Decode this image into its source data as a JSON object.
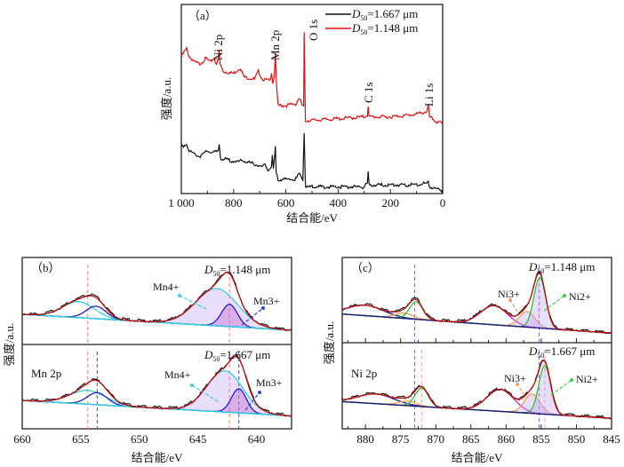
{
  "chart_data": [
    {
      "id": "a",
      "type": "line",
      "panel_label": "（a）",
      "xlabel": "结合能/eV",
      "ylabel": "强度/a.u.",
      "xlim": [
        1000,
        0
      ],
      "ylim": [
        0,
        100
      ],
      "xticks": [
        "1 000",
        "800",
        "600",
        "400",
        "200",
        "0"
      ],
      "xtick_values": [
        1000,
        800,
        600,
        400,
        200,
        0
      ],
      "legend": {
        "placement": "top-right",
        "entries": [
          {
            "pre": "D",
            "sub": "50",
            "post": "=1.667 μm",
            "color": "#111111"
          },
          {
            "pre": "D",
            "sub": "50",
            "post": "=1.148 μm",
            "color": "#e01010"
          }
        ]
      },
      "peak_labels": [
        "Ni 2p",
        "Mn 2p",
        "O 1s",
        "C 1s",
        "Li 1s"
      ],
      "series": [
        {
          "name": "D50=1.148 μm",
          "color": "#e01010",
          "points": [
            [
              1000,
              73
            ],
            [
              990,
              75
            ],
            [
              980,
              77
            ],
            [
              970,
              73
            ],
            [
              950,
              70
            ],
            [
              930,
              69
            ],
            [
              905,
              72
            ],
            [
              890,
              70
            ],
            [
              875,
              72
            ],
            [
              865,
              69
            ],
            [
              858,
              71
            ],
            [
              855,
              76
            ],
            [
              852,
              69
            ],
            [
              840,
              65
            ],
            [
              800,
              64
            ],
            [
              775,
              67
            ],
            [
              760,
              62
            ],
            [
              720,
              61
            ],
            [
              705,
              65
            ],
            [
              690,
              61
            ],
            [
              660,
              60
            ],
            [
              655,
              65
            ],
            [
              650,
              59
            ],
            [
              645,
              62
            ],
            [
              640,
              74
            ],
            [
              636,
              58
            ],
            [
              630,
              47
            ],
            [
              600,
              47
            ],
            [
              560,
              48
            ],
            [
              550,
              51
            ],
            [
              540,
              48
            ],
            [
              532,
              46
            ],
            [
              530,
              85
            ],
            [
              527,
              55
            ],
            [
              525,
              39
            ],
            [
              400,
              40
            ],
            [
              300,
              41
            ],
            [
              288,
              42
            ],
            [
              285,
              47
            ],
            [
              282,
              41
            ],
            [
              200,
              41
            ],
            [
              120,
              42
            ],
            [
              80,
              43
            ],
            [
              60,
              44
            ],
            [
              55,
              47
            ],
            [
              50,
              41
            ],
            [
              30,
              39
            ],
            [
              20,
              38
            ],
            [
              10,
              38
            ],
            [
              0,
              37
            ]
          ]
        },
        {
          "name": "D50=1.667 μm",
          "color": "#111111",
          "points": [
            [
              1000,
              25
            ],
            [
              980,
              27
            ],
            [
              970,
              23
            ],
            [
              930,
              20
            ],
            [
              900,
              23
            ],
            [
              880,
              22
            ],
            [
              858,
              23
            ],
            [
              855,
              27
            ],
            [
              850,
              19
            ],
            [
              780,
              17
            ],
            [
              770,
              18
            ],
            [
              720,
              16
            ],
            [
              700,
              15
            ],
            [
              690,
              14
            ],
            [
              680,
              16
            ],
            [
              670,
              13
            ],
            [
              655,
              14
            ],
            [
              652,
              20
            ],
            [
              648,
              13
            ],
            [
              640,
              25
            ],
            [
              637,
              11
            ],
            [
              630,
              8
            ],
            [
              560,
              8
            ],
            [
              550,
              11
            ],
            [
              535,
              8
            ],
            [
              530,
              33
            ],
            [
              526,
              8
            ],
            [
              524,
              4
            ],
            [
              300,
              4
            ],
            [
              288,
              6
            ],
            [
              285,
              12
            ],
            [
              282,
              5
            ],
            [
              100,
              5
            ],
            [
              60,
              6
            ],
            [
              55,
              7
            ],
            [
              50,
              4
            ],
            [
              0,
              2
            ]
          ]
        }
      ]
    },
    {
      "id": "b",
      "type": "line",
      "panel_label": "（b）",
      "core_label": "Mn 2p",
      "xlabel": "结合能/eV",
      "ylabel": "强度/a.u.",
      "xlim": [
        660,
        637
      ],
      "ylim": [
        0,
        98
      ],
      "xticks": [
        "660",
        "655",
        "650",
        "645",
        "640"
      ],
      "xtick_values": [
        660,
        655,
        650,
        645,
        640
      ],
      "subpanels": [
        {
          "label": {
            "pre": "D",
            "sub": "50",
            "post": "=1.148 μm"
          },
          "baseline": [
            34,
            16
          ],
          "components": [
            {
              "name": "Mn4+",
              "center": 643.4,
              "fwhm": 4.2,
              "height": 42,
              "color": "#30d0e0",
              "fill": true
            },
            {
              "name": "Mn3+",
              "center": 642.3,
              "fwhm": 1.6,
              "height": 25,
              "color": "#2020c0",
              "fill": true
            },
            {
              "center": 655.2,
              "fwhm": 3.2,
              "height": 18,
              "color": "#30d0e0"
            },
            {
              "center": 653.7,
              "fwhm": 2.0,
              "height": 14,
              "color": "#2020c0"
            }
          ],
          "annotations": [
            "Mn4+",
            "Mn3+"
          ],
          "dashed": [
            {
              "x": 654.4,
              "color": "#f08080"
            },
            {
              "x": 642.3,
              "color": "#f08080"
            }
          ]
        },
        {
          "label": {
            "pre": "D",
            "sub": "50",
            "post": "=1.667 μm"
          },
          "baseline": [
            33,
            15
          ],
          "components": [
            {
              "name": "Mn4+",
              "center": 642.7,
              "fwhm": 3.6,
              "height": 48,
              "color": "#30d0e0",
              "fill": true
            },
            {
              "name": "Mn3+",
              "center": 641.5,
              "fwhm": 1.5,
              "height": 28,
              "color": "#2020c0",
              "fill": true
            },
            {
              "center": 654.4,
              "fwhm": 3.6,
              "height": 16,
              "color": "#30d0e0"
            },
            {
              "center": 653.6,
              "fwhm": 2.0,
              "height": 14,
              "color": "#2020c0"
            }
          ],
          "annotations": [
            "Mn4+",
            "Mn3+"
          ],
          "dashed": [
            {
              "x": 654.4,
              "color": "#f08080"
            },
            {
              "x": 642.3,
              "color": "#f08080"
            },
            {
              "x": 653.6,
              "color": "#5040b0"
            },
            {
              "x": 641.5,
              "color": "#5040b0"
            }
          ]
        }
      ]
    },
    {
      "id": "c",
      "type": "line",
      "panel_label": "（c）",
      "core_label": "Ni 2p",
      "xlabel": "结合能/eV",
      "ylabel": "强度/a.u.",
      "xlim": [
        883.3,
        845
      ],
      "ylim": [
        0,
        98
      ],
      "xticks": [
        "880",
        "875",
        "870",
        "865",
        "860",
        "855",
        "850",
        "845"
      ],
      "xtick_values": [
        880,
        875,
        870,
        865,
        860,
        855,
        850,
        845
      ],
      "subpanels": [
        {
          "label": {
            "pre": "D",
            "sub": "50",
            "post": "=1.148 μm"
          },
          "baseline": [
            33,
            11
          ],
          "components": [
            {
              "center": 880,
              "fwhm": 6,
              "height": 12,
              "color": "#1a1a80"
            },
            {
              "center": 874.5,
              "fwhm": 3,
              "height": 6,
              "color": "#f0a060"
            },
            {
              "center": 872.8,
              "fwhm": 2.2,
              "height": 20,
              "color": "#30c030"
            },
            {
              "center": 861.7,
              "fwhm": 4.5,
              "height": 22,
              "color": "#d020d0"
            },
            {
              "name": "Ni3+",
              "center": 857,
              "fwhm": 2.6,
              "height": 18,
              "color": "#f0a060",
              "fill": true
            },
            {
              "name": "Ni2+",
              "center": 855.2,
              "fwhm": 2.0,
              "height": 58,
              "color": "#30c030",
              "fill": true
            }
          ],
          "annotations": [
            "Ni3+",
            "Ni2+"
          ],
          "dashed": [
            {
              "x": 873,
              "color": "#7070e0"
            },
            {
              "x": 855.3,
              "color": "#7070e0"
            }
          ]
        },
        {
          "label": {
            "pre": "D",
            "sub": "50",
            "post": "=1.667 μm"
          },
          "baseline": [
            31,
            12
          ],
          "components": [
            {
              "center": 878.5,
              "fwhm": 6,
              "height": 11,
              "color": "#1a1a80"
            },
            {
              "center": 874,
              "fwhm": 3,
              "height": 5,
              "color": "#f0a060"
            },
            {
              "center": 872,
              "fwhm": 2.2,
              "height": 21,
              "color": "#30c030"
            },
            {
              "center": 860.8,
              "fwhm": 4.5,
              "height": 25,
              "color": "#d020d0"
            },
            {
              "name": "Ni3+",
              "center": 856.3,
              "fwhm": 2.6,
              "height": 22,
              "color": "#f0a060",
              "fill": true
            },
            {
              "name": "Ni2+",
              "center": 854.5,
              "fwhm": 2.0,
              "height": 55,
              "color": "#30c030",
              "fill": true
            }
          ],
          "annotations": [
            "Ni3+",
            "Ni2+"
          ],
          "dashed": [
            {
              "x": 873,
              "color": "#7070e0"
            },
            {
              "x": 855.3,
              "color": "#7070e0"
            },
            {
              "x": 872,
              "color": "#f0a0b0"
            },
            {
              "x": 854.5,
              "color": "#f0a0b0"
            }
          ]
        }
      ]
    }
  ]
}
